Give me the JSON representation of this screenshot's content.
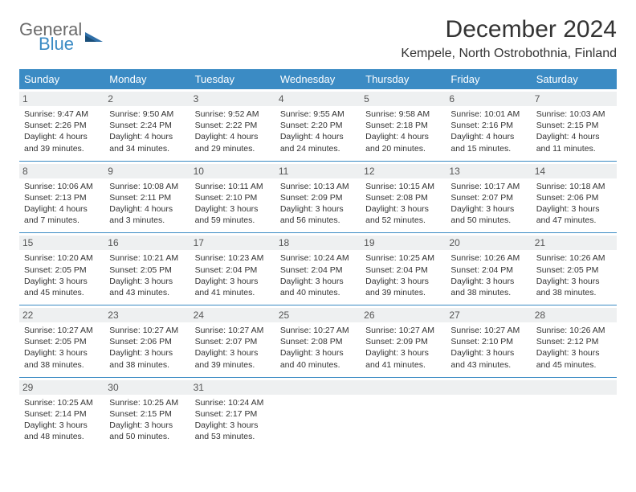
{
  "logo": {
    "line1": "General",
    "line2": "Blue",
    "icon_color": "#2f6fa8"
  },
  "title": "December 2024",
  "location": "Kempele, North Ostrobothnia, Finland",
  "header_bg": "#3b8bc4",
  "day_headers": [
    "Sunday",
    "Monday",
    "Tuesday",
    "Wednesday",
    "Thursday",
    "Friday",
    "Saturday"
  ],
  "weeks": [
    [
      {
        "n": "1",
        "sr": "Sunrise: 9:47 AM",
        "ss": "Sunset: 2:26 PM",
        "dl": "Daylight: 4 hours and 39 minutes."
      },
      {
        "n": "2",
        "sr": "Sunrise: 9:50 AM",
        "ss": "Sunset: 2:24 PM",
        "dl": "Daylight: 4 hours and 34 minutes."
      },
      {
        "n": "3",
        "sr": "Sunrise: 9:52 AM",
        "ss": "Sunset: 2:22 PM",
        "dl": "Daylight: 4 hours and 29 minutes."
      },
      {
        "n": "4",
        "sr": "Sunrise: 9:55 AM",
        "ss": "Sunset: 2:20 PM",
        "dl": "Daylight: 4 hours and 24 minutes."
      },
      {
        "n": "5",
        "sr": "Sunrise: 9:58 AM",
        "ss": "Sunset: 2:18 PM",
        "dl": "Daylight: 4 hours and 20 minutes."
      },
      {
        "n": "6",
        "sr": "Sunrise: 10:01 AM",
        "ss": "Sunset: 2:16 PM",
        "dl": "Daylight: 4 hours and 15 minutes."
      },
      {
        "n": "7",
        "sr": "Sunrise: 10:03 AM",
        "ss": "Sunset: 2:15 PM",
        "dl": "Daylight: 4 hours and 11 minutes."
      }
    ],
    [
      {
        "n": "8",
        "sr": "Sunrise: 10:06 AM",
        "ss": "Sunset: 2:13 PM",
        "dl": "Daylight: 4 hours and 7 minutes."
      },
      {
        "n": "9",
        "sr": "Sunrise: 10:08 AM",
        "ss": "Sunset: 2:11 PM",
        "dl": "Daylight: 4 hours and 3 minutes."
      },
      {
        "n": "10",
        "sr": "Sunrise: 10:11 AM",
        "ss": "Sunset: 2:10 PM",
        "dl": "Daylight: 3 hours and 59 minutes."
      },
      {
        "n": "11",
        "sr": "Sunrise: 10:13 AM",
        "ss": "Sunset: 2:09 PM",
        "dl": "Daylight: 3 hours and 56 minutes."
      },
      {
        "n": "12",
        "sr": "Sunrise: 10:15 AM",
        "ss": "Sunset: 2:08 PM",
        "dl": "Daylight: 3 hours and 52 minutes."
      },
      {
        "n": "13",
        "sr": "Sunrise: 10:17 AM",
        "ss": "Sunset: 2:07 PM",
        "dl": "Daylight: 3 hours and 50 minutes."
      },
      {
        "n": "14",
        "sr": "Sunrise: 10:18 AM",
        "ss": "Sunset: 2:06 PM",
        "dl": "Daylight: 3 hours and 47 minutes."
      }
    ],
    [
      {
        "n": "15",
        "sr": "Sunrise: 10:20 AM",
        "ss": "Sunset: 2:05 PM",
        "dl": "Daylight: 3 hours and 45 minutes."
      },
      {
        "n": "16",
        "sr": "Sunrise: 10:21 AM",
        "ss": "Sunset: 2:05 PM",
        "dl": "Daylight: 3 hours and 43 minutes."
      },
      {
        "n": "17",
        "sr": "Sunrise: 10:23 AM",
        "ss": "Sunset: 2:04 PM",
        "dl": "Daylight: 3 hours and 41 minutes."
      },
      {
        "n": "18",
        "sr": "Sunrise: 10:24 AM",
        "ss": "Sunset: 2:04 PM",
        "dl": "Daylight: 3 hours and 40 minutes."
      },
      {
        "n": "19",
        "sr": "Sunrise: 10:25 AM",
        "ss": "Sunset: 2:04 PM",
        "dl": "Daylight: 3 hours and 39 minutes."
      },
      {
        "n": "20",
        "sr": "Sunrise: 10:26 AM",
        "ss": "Sunset: 2:04 PM",
        "dl": "Daylight: 3 hours and 38 minutes."
      },
      {
        "n": "21",
        "sr": "Sunrise: 10:26 AM",
        "ss": "Sunset: 2:05 PM",
        "dl": "Daylight: 3 hours and 38 minutes."
      }
    ],
    [
      {
        "n": "22",
        "sr": "Sunrise: 10:27 AM",
        "ss": "Sunset: 2:05 PM",
        "dl": "Daylight: 3 hours and 38 minutes."
      },
      {
        "n": "23",
        "sr": "Sunrise: 10:27 AM",
        "ss": "Sunset: 2:06 PM",
        "dl": "Daylight: 3 hours and 38 minutes."
      },
      {
        "n": "24",
        "sr": "Sunrise: 10:27 AM",
        "ss": "Sunset: 2:07 PM",
        "dl": "Daylight: 3 hours and 39 minutes."
      },
      {
        "n": "25",
        "sr": "Sunrise: 10:27 AM",
        "ss": "Sunset: 2:08 PM",
        "dl": "Daylight: 3 hours and 40 minutes."
      },
      {
        "n": "26",
        "sr": "Sunrise: 10:27 AM",
        "ss": "Sunset: 2:09 PM",
        "dl": "Daylight: 3 hours and 41 minutes."
      },
      {
        "n": "27",
        "sr": "Sunrise: 10:27 AM",
        "ss": "Sunset: 2:10 PM",
        "dl": "Daylight: 3 hours and 43 minutes."
      },
      {
        "n": "28",
        "sr": "Sunrise: 10:26 AM",
        "ss": "Sunset: 2:12 PM",
        "dl": "Daylight: 3 hours and 45 minutes."
      }
    ],
    [
      {
        "n": "29",
        "sr": "Sunrise: 10:25 AM",
        "ss": "Sunset: 2:14 PM",
        "dl": "Daylight: 3 hours and 48 minutes."
      },
      {
        "n": "30",
        "sr": "Sunrise: 10:25 AM",
        "ss": "Sunset: 2:15 PM",
        "dl": "Daylight: 3 hours and 50 minutes."
      },
      {
        "n": "31",
        "sr": "Sunrise: 10:24 AM",
        "ss": "Sunset: 2:17 PM",
        "dl": "Daylight: 3 hours and 53 minutes."
      },
      {
        "n": "",
        "sr": "",
        "ss": "",
        "dl": ""
      },
      {
        "n": "",
        "sr": "",
        "ss": "",
        "dl": ""
      },
      {
        "n": "",
        "sr": "",
        "ss": "",
        "dl": ""
      },
      {
        "n": "",
        "sr": "",
        "ss": "",
        "dl": ""
      }
    ]
  ]
}
